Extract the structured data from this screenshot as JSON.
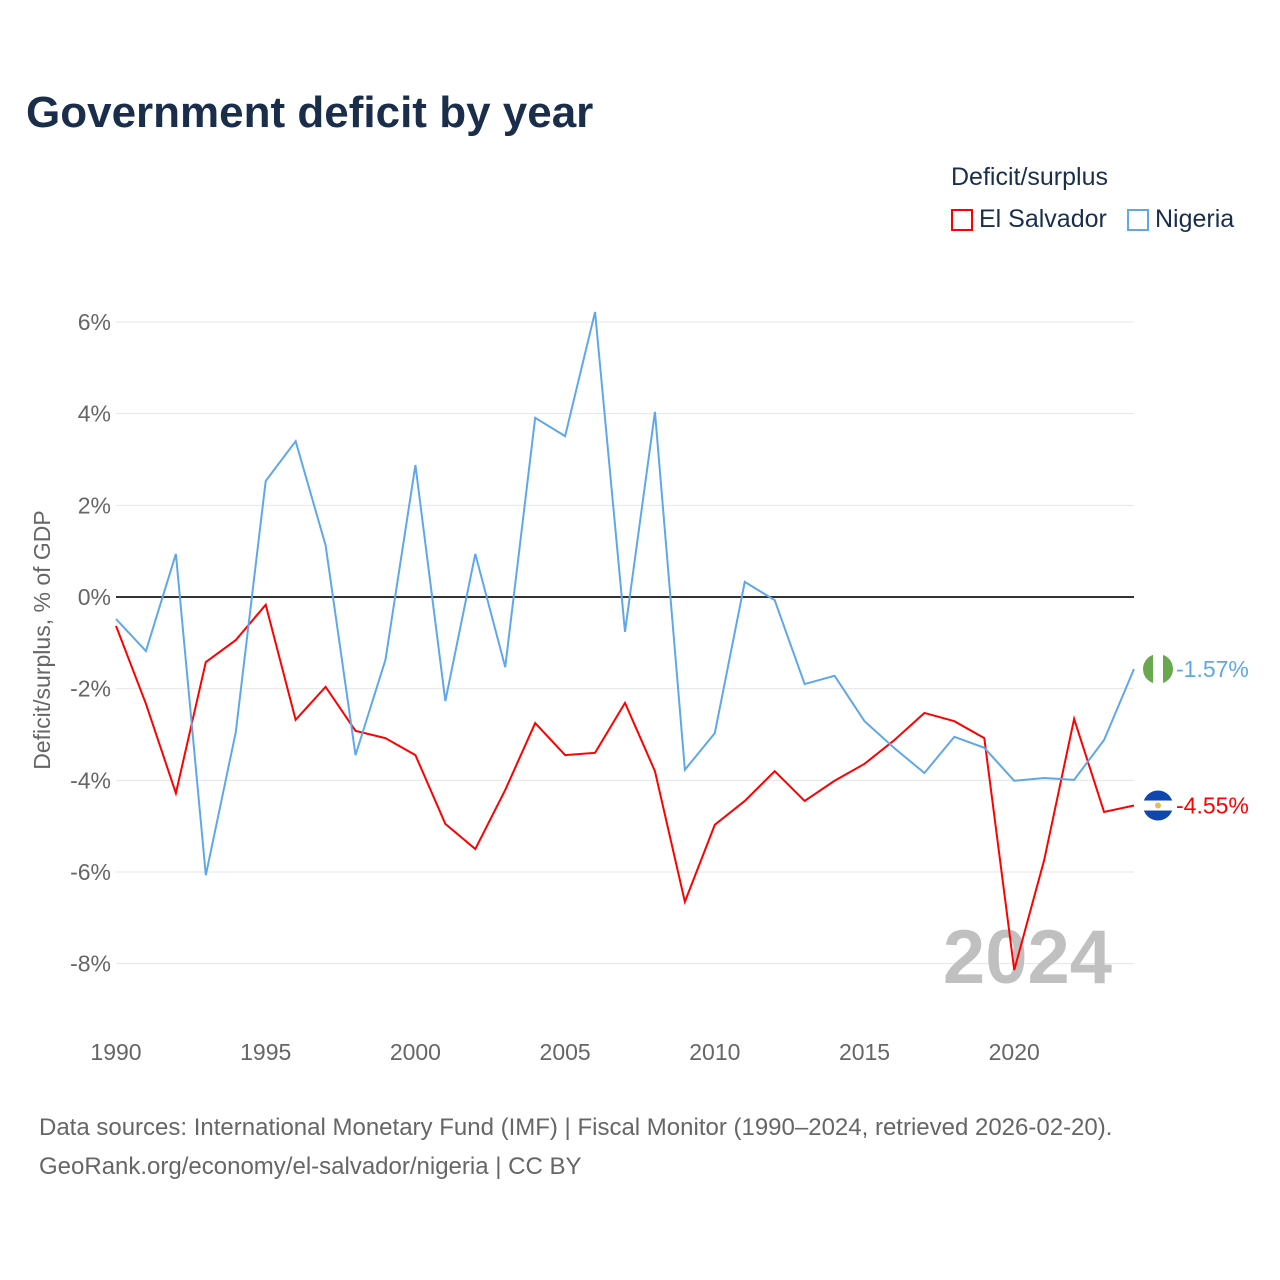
{
  "title": "Government deficit by year",
  "legend": {
    "title": "Deficit/surplus",
    "items": [
      "El Salvador",
      "Nigeria"
    ]
  },
  "source": {
    "line1": "Data sources: International Monetary Fund (IMF) | Fiscal Monitor (1990–2024, retrieved 2026-02-20).",
    "line2": "GeoRank.org/economy/el-salvador/nigeria | CC BY"
  },
  "chart_data": {
    "type": "line",
    "title": "Government deficit by year",
    "xlabel": "",
    "ylabel": "Deficit/surplus, % of GDP",
    "xlim": [
      1990,
      2024
    ],
    "ylim": [
      -9,
      6.5
    ],
    "yticks": [
      6,
      4,
      2,
      0,
      -2,
      -4,
      -6,
      -8
    ],
    "ytick_labels": [
      "6%",
      "4%",
      "2%",
      "0%",
      "-2%",
      "-4%",
      "-6%",
      "-8%"
    ],
    "xticks": [
      1990,
      1995,
      2000,
      2005,
      2010,
      2015,
      2020
    ],
    "xtick_labels": [
      "1990",
      "1995",
      "2000",
      "2005",
      "2010",
      "2015",
      "2020"
    ],
    "year_watermark": "2024",
    "x": [
      1990,
      1991,
      1992,
      1993,
      1994,
      1995,
      1996,
      1997,
      1998,
      1999,
      2000,
      2001,
      2002,
      2003,
      2004,
      2005,
      2006,
      2007,
      2008,
      2009,
      2010,
      2011,
      2012,
      2013,
      2014,
      2015,
      2016,
      2017,
      2018,
      2019,
      2020,
      2021,
      2022,
      2023,
      2024
    ],
    "series": [
      {
        "name": "El Salvador",
        "color": "#ff0000",
        "end_label": "-4.55%",
        "values": [
          -0.63,
          -2.33,
          -4.28,
          -1.42,
          -0.94,
          -0.17,
          -2.68,
          -1.96,
          -2.92,
          -3.08,
          -3.45,
          -4.95,
          -5.5,
          -4.21,
          -2.75,
          -3.45,
          -3.4,
          -2.31,
          -3.8,
          -6.65,
          -4.97,
          -4.45,
          -3.8,
          -4.45,
          -4.01,
          -3.64,
          -3.12,
          -2.53,
          -2.71,
          -3.08,
          -8.14,
          -5.74,
          -2.66,
          -4.69,
          -4.55
        ]
      },
      {
        "name": "Nigeria",
        "color": "#5fa8e8",
        "end_label": "-1.57%",
        "values": [
          -0.48,
          -1.18,
          0.94,
          -6.07,
          -2.95,
          2.53,
          3.4,
          1.13,
          -3.45,
          -1.37,
          2.88,
          -2.27,
          0.94,
          -1.53,
          3.91,
          3.51,
          6.22,
          -0.76,
          4.04,
          -3.77,
          -2.97,
          0.33,
          -0.07,
          -1.9,
          -1.72,
          -2.71,
          -3.3,
          -3.84,
          -3.05,
          -3.29,
          -4.01,
          -3.95,
          -3.99,
          -3.12,
          -1.57
        ]
      }
    ]
  }
}
